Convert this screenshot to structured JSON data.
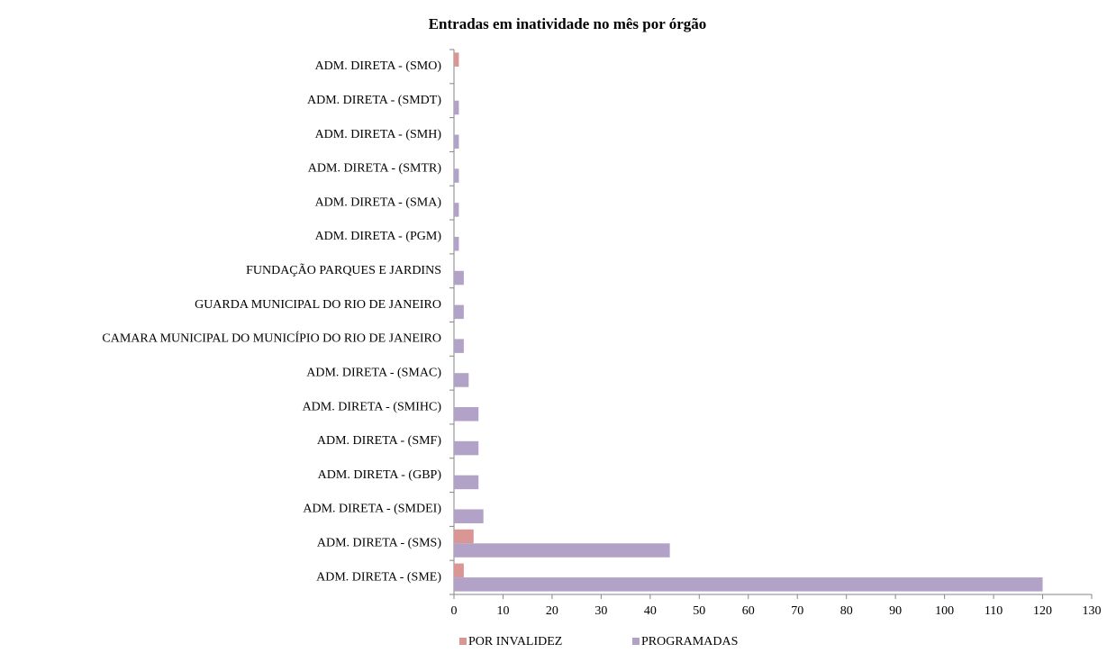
{
  "chart_data": {
    "type": "bar",
    "orientation": "horizontal",
    "title": "Entradas em inatividade no mês por órgão",
    "categories": [
      "ADM. DIRETA - (SMO)",
      "ADM. DIRETA - (SMDT)",
      "ADM. DIRETA - (SMH)",
      "ADM. DIRETA - (SMTR)",
      "ADM. DIRETA - (SMA)",
      "ADM. DIRETA - (PGM)",
      "FUNDAÇÃO PARQUES E JARDINS",
      "GUARDA MUNICIPAL DO RIO DE JANEIRO",
      "CAMARA MUNICIPAL DO MUNICÍPIO DO RIO DE JANEIRO",
      "ADM. DIRETA - (SMAC)",
      "ADM. DIRETA - (SMIHC)",
      "ADM. DIRETA - (SMF)",
      "ADM. DIRETA - (GBP)",
      "ADM. DIRETA - (SMDEI)",
      "ADM. DIRETA - (SMS)",
      "ADM. DIRETA - (SME)"
    ],
    "series": [
      {
        "name": "POR INVALIDEZ",
        "color": "#d99694",
        "values": [
          1,
          null,
          null,
          null,
          null,
          null,
          null,
          null,
          null,
          null,
          null,
          null,
          null,
          null,
          4,
          2
        ]
      },
      {
        "name": "PROGRAMADAS",
        "color": "#b3a2c7",
        "values": [
          null,
          1,
          1,
          1,
          1,
          1,
          2,
          2,
          2,
          3,
          5,
          5,
          5,
          6,
          44,
          120
        ]
      }
    ],
    "xlim": [
      0,
      130
    ],
    "xticks": [
      0,
      10,
      20,
      30,
      40,
      50,
      60,
      70,
      80,
      90,
      100,
      110,
      120,
      130
    ],
    "grid": false,
    "legend": "bottom"
  }
}
